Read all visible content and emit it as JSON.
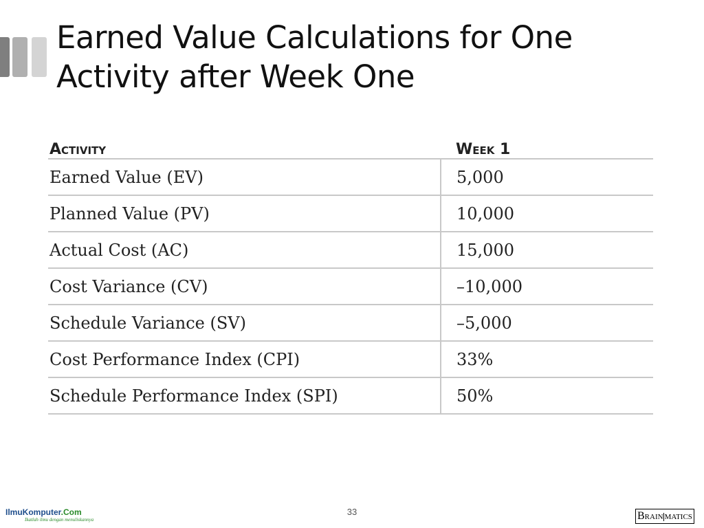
{
  "slide": {
    "title": "Earned Value Calculations for One Activity after Week One",
    "page_number": "33"
  },
  "table": {
    "headers": [
      "Activity",
      "Week 1"
    ],
    "rows": [
      {
        "label": "Earned Value (EV)",
        "value": "5,000"
      },
      {
        "label": "Planned Value (PV)",
        "value": "10,000"
      },
      {
        "label": "Actual Cost (AC)",
        "value": "15,000"
      },
      {
        "label": "Cost Variance (CV)",
        "value": "–10,000"
      },
      {
        "label": "Schedule Variance (SV)",
        "value": "–5,000"
      },
      {
        "label": "Cost Performance Index (CPI)",
        "value": "33%"
      },
      {
        "label": "Schedule Performance Index (SPI)",
        "value": "50%"
      }
    ]
  },
  "footer": {
    "left_logo": {
      "name": "IlmuKomputer",
      "suffix": ".Com",
      "tagline": "Ikatlah ilmu dengan menuliskannya"
    },
    "right_logo": {
      "part1": "B",
      "part2": "RAIN",
      "part3": "MATICS"
    }
  },
  "colors": {
    "deco_dark": "#7f7f7f",
    "deco_mid": "#b0b0b0",
    "deco_light": "#d4d4d4",
    "table_rule": "#c8c8c8"
  }
}
